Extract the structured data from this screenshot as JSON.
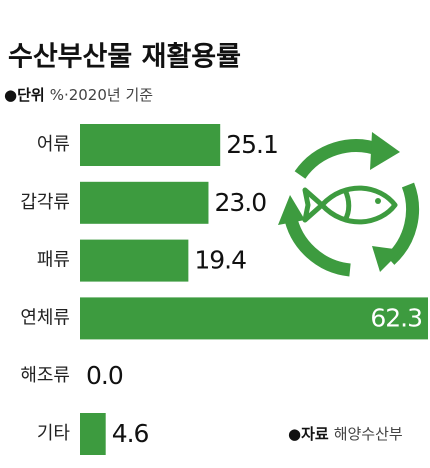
{
  "chart_data": {
    "type": "bar",
    "orientation": "horizontal",
    "title": "수산부산물 재활용률",
    "unit_label": "단위",
    "subtitle": "%·2020년 기준",
    "source_label": "자료",
    "source": "해양수산부",
    "categories": [
      "어류",
      "갑각류",
      "패류",
      "연체류",
      "해조류",
      "기타"
    ],
    "values": [
      25.1,
      23.0,
      19.4,
      62.3,
      0.0,
      4.6
    ],
    "value_labels": [
      "25.1",
      "23.0",
      "19.4",
      "62.3",
      "0.0",
      "4.6"
    ],
    "color": "#3d9b3f"
  }
}
